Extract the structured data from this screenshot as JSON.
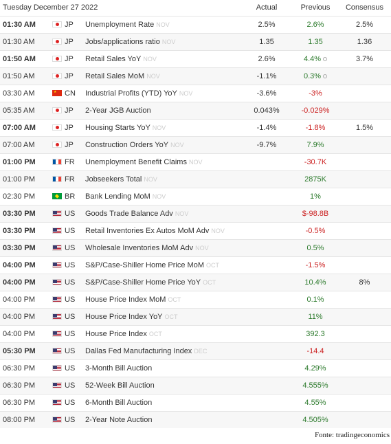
{
  "header": {
    "date": "Tuesday December 27 2022",
    "actual": "Actual",
    "previous": "Previous",
    "consensus": "Consensus"
  },
  "colors": {
    "positive": "#2c7a2c",
    "negative": "#cc2222",
    "reference": "#cccccc"
  },
  "rows": [
    {
      "time": "01:30 AM",
      "bold": true,
      "country": "JP",
      "event": "Unemployment Rate",
      "ref": "NOV",
      "actual": "2.5%",
      "previous": "2.6%",
      "prev_dir": "pos",
      "consensus": "2.5%"
    },
    {
      "time": "01:30 AM",
      "bold": false,
      "country": "JP",
      "event": "Jobs/applications ratio",
      "ref": "NOV",
      "actual": "1.35",
      "previous": "1.35",
      "prev_dir": "pos",
      "consensus": "1.36"
    },
    {
      "time": "01:50 AM",
      "bold": true,
      "country": "JP",
      "event": "Retail Sales YoY",
      "ref": "NOV",
      "actual": "2.6%",
      "previous": "4.4%",
      "prev_dir": "pos",
      "revised": true,
      "consensus": "3.7%"
    },
    {
      "time": "01:50 AM",
      "bold": false,
      "country": "JP",
      "event": "Retail Sales MoM",
      "ref": "NOV",
      "actual": "-1.1%",
      "previous": "0.3%",
      "prev_dir": "pos",
      "revised": true,
      "consensus": ""
    },
    {
      "time": "03:30 AM",
      "bold": false,
      "country": "CN",
      "event": "Industrial Profits (YTD) YoY",
      "ref": "NOV",
      "actual": "-3.6%",
      "previous": "-3%",
      "prev_dir": "neg",
      "consensus": ""
    },
    {
      "time": "05:35 AM",
      "bold": false,
      "country": "JP",
      "event": "2-Year JGB Auction",
      "ref": "",
      "actual": "0.043%",
      "previous": "-0.029%",
      "prev_dir": "neg",
      "consensus": ""
    },
    {
      "time": "07:00 AM",
      "bold": true,
      "country": "JP",
      "event": "Housing Starts YoY",
      "ref": "NOV",
      "actual": "-1.4%",
      "previous": "-1.8%",
      "prev_dir": "neg",
      "consensus": "1.5%"
    },
    {
      "time": "07:00 AM",
      "bold": false,
      "country": "JP",
      "event": "Construction Orders YoY",
      "ref": "NOV",
      "actual": "-9.7%",
      "previous": "7.9%",
      "prev_dir": "pos",
      "consensus": ""
    },
    {
      "time": "01:00 PM",
      "bold": true,
      "country": "FR",
      "event": "Unemployment Benefit Claims",
      "ref": "NOV",
      "actual": "",
      "previous": "-30.7K",
      "prev_dir": "neg",
      "consensus": ""
    },
    {
      "time": "01:00 PM",
      "bold": false,
      "country": "FR",
      "event": "Jobseekers Total",
      "ref": "NOV",
      "actual": "",
      "previous": "2875K",
      "prev_dir": "pos",
      "consensus": ""
    },
    {
      "time": "02:30 PM",
      "bold": false,
      "country": "BR",
      "event": "Bank Lending MoM",
      "ref": "NOV",
      "actual": "",
      "previous": "1%",
      "prev_dir": "pos",
      "consensus": ""
    },
    {
      "time": "03:30 PM",
      "bold": true,
      "country": "US",
      "event": "Goods Trade Balance Adv",
      "ref": "NOV",
      "actual": "",
      "previous": "$-98.8B",
      "prev_dir": "neg",
      "consensus": ""
    },
    {
      "time": "03:30 PM",
      "bold": true,
      "country": "US",
      "event": "Retail Inventories Ex Autos MoM Adv",
      "ref": "NOV",
      "actual": "",
      "previous": "-0.5%",
      "prev_dir": "neg",
      "consensus": ""
    },
    {
      "time": "03:30 PM",
      "bold": true,
      "country": "US",
      "event": "Wholesale Inventories MoM Adv",
      "ref": "NOV",
      "actual": "",
      "previous": "0.5%",
      "prev_dir": "pos",
      "consensus": ""
    },
    {
      "time": "04:00 PM",
      "bold": true,
      "country": "US",
      "event": "S&P/Case-Shiller Home Price MoM",
      "ref": "OCT",
      "actual": "",
      "previous": "-1.5%",
      "prev_dir": "neg",
      "consensus": ""
    },
    {
      "time": "04:00 PM",
      "bold": true,
      "country": "US",
      "event": "S&P/Case-Shiller Home Price YoY",
      "ref": "OCT",
      "actual": "",
      "previous": "10.4%",
      "prev_dir": "pos",
      "consensus": "8%"
    },
    {
      "time": "04:00 PM",
      "bold": false,
      "country": "US",
      "event": "House Price Index MoM",
      "ref": "OCT",
      "actual": "",
      "previous": "0.1%",
      "prev_dir": "pos",
      "consensus": ""
    },
    {
      "time": "04:00 PM",
      "bold": false,
      "country": "US",
      "event": "House Price Index YoY",
      "ref": "OCT",
      "actual": "",
      "previous": "11%",
      "prev_dir": "pos",
      "consensus": ""
    },
    {
      "time": "04:00 PM",
      "bold": false,
      "country": "US",
      "event": "House Price Index",
      "ref": "OCT",
      "actual": "",
      "previous": "392.3",
      "prev_dir": "pos",
      "consensus": ""
    },
    {
      "time": "05:30 PM",
      "bold": true,
      "country": "US",
      "event": "Dallas Fed Manufacturing Index",
      "ref": "DEC",
      "actual": "",
      "previous": "-14.4",
      "prev_dir": "neg",
      "consensus": ""
    },
    {
      "time": "06:30 PM",
      "bold": false,
      "country": "US",
      "event": "3-Month Bill Auction",
      "ref": "",
      "actual": "",
      "previous": "4.29%",
      "prev_dir": "pos",
      "consensus": ""
    },
    {
      "time": "06:30 PM",
      "bold": false,
      "country": "US",
      "event": "52-Week Bill Auction",
      "ref": "",
      "actual": "",
      "previous": "4.555%",
      "prev_dir": "pos",
      "consensus": ""
    },
    {
      "time": "06:30 PM",
      "bold": false,
      "country": "US",
      "event": "6-Month Bill Auction",
      "ref": "",
      "actual": "",
      "previous": "4.55%",
      "prev_dir": "pos",
      "consensus": ""
    },
    {
      "time": "08:00 PM",
      "bold": false,
      "country": "US",
      "event": "2-Year Note Auction",
      "ref": "",
      "actual": "",
      "previous": "4.505%",
      "prev_dir": "pos",
      "consensus": ""
    }
  ],
  "footer": {
    "source": "Fonte: tradingeconomics"
  }
}
